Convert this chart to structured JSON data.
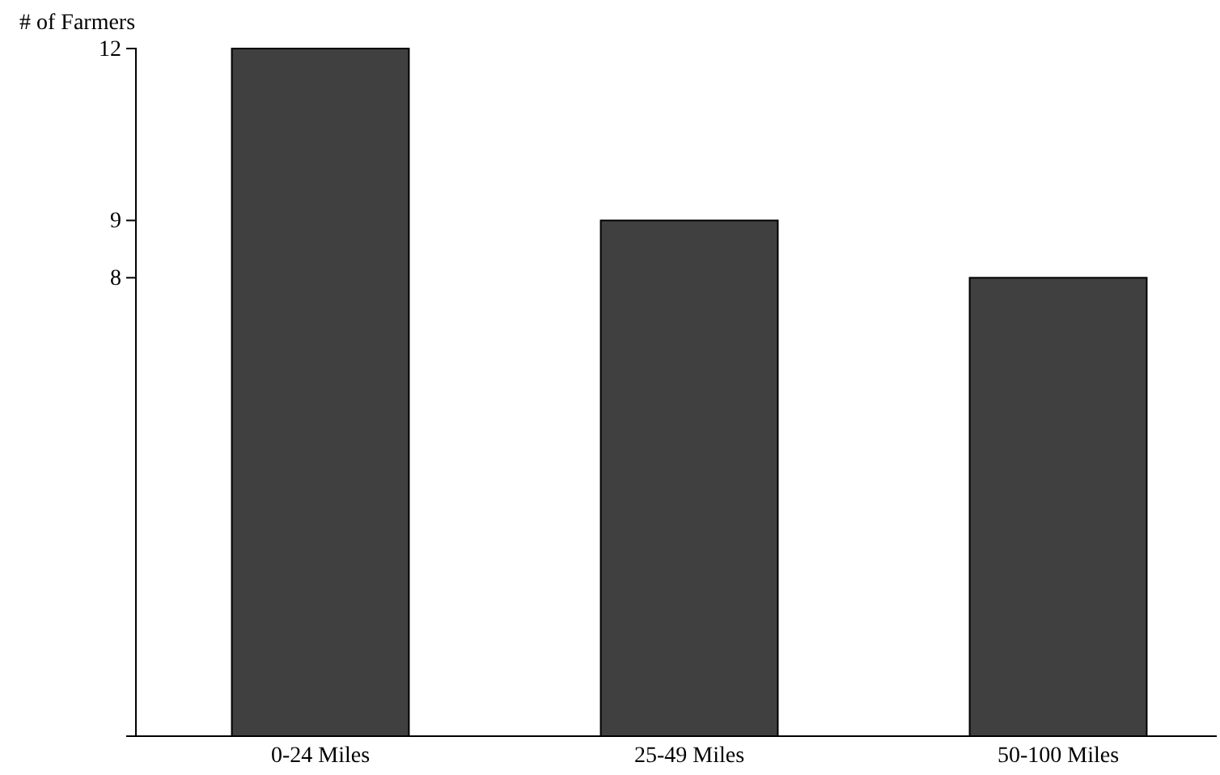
{
  "chart_data": {
    "type": "bar",
    "ylabel": "# of Farmers",
    "categories": [
      "0-24 Miles",
      "25-49 Miles",
      "50-100 Miles"
    ],
    "values": [
      12,
      9,
      8
    ],
    "color": "#404040",
    "ylim": [
      0,
      12
    ],
    "yticks": [
      8,
      9,
      12
    ],
    "grid": false
  }
}
